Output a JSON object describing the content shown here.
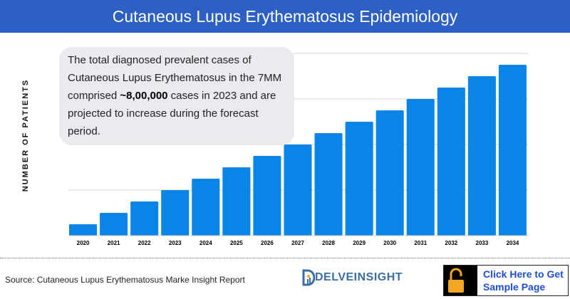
{
  "header": {
    "title": "Cutaneous Lupus Erythematosus Epidemiology"
  },
  "callout": {
    "text_before": "The total diagnosed prevalent cases of Cutaneous Lupus Erythematosus in the 7MM comprised ",
    "highlight": "~8,00,000",
    "text_after": " cases in 2023 and are projected to increase during the forecast period."
  },
  "footer": {
    "source": "Source: Cutaneous Lupus Erythematosus Marke Insight Report",
    "logo": "DELVEINSIGHT",
    "cta": "Click Here to Get Sample Page"
  },
  "colors": {
    "header": "#2d60c4",
    "bar": "#0a84e6",
    "callout_bg": "#e9ebee",
    "cta_text": "#1f4fd1",
    "lock": "#f5a623"
  },
  "chart_data": {
    "type": "bar",
    "title": "Cutaneous Lupus Erythematosus Epidemiology",
    "xlabel": "",
    "ylabel": "NUMBER OF PATIENTS",
    "categories": [
      "2020",
      "2021",
      "2022",
      "2023",
      "2024",
      "2025",
      "2026",
      "2027",
      "2028",
      "2029",
      "2030",
      "2031",
      "2032",
      "2033",
      "2034"
    ],
    "values": [
      1,
      2,
      3,
      4,
      5,
      6,
      7,
      8,
      9,
      10,
      11,
      12,
      13,
      14,
      15
    ],
    "ylim": [
      0,
      16
    ],
    "y_ticks_labeled": false,
    "grid": true,
    "legend": "none"
  }
}
